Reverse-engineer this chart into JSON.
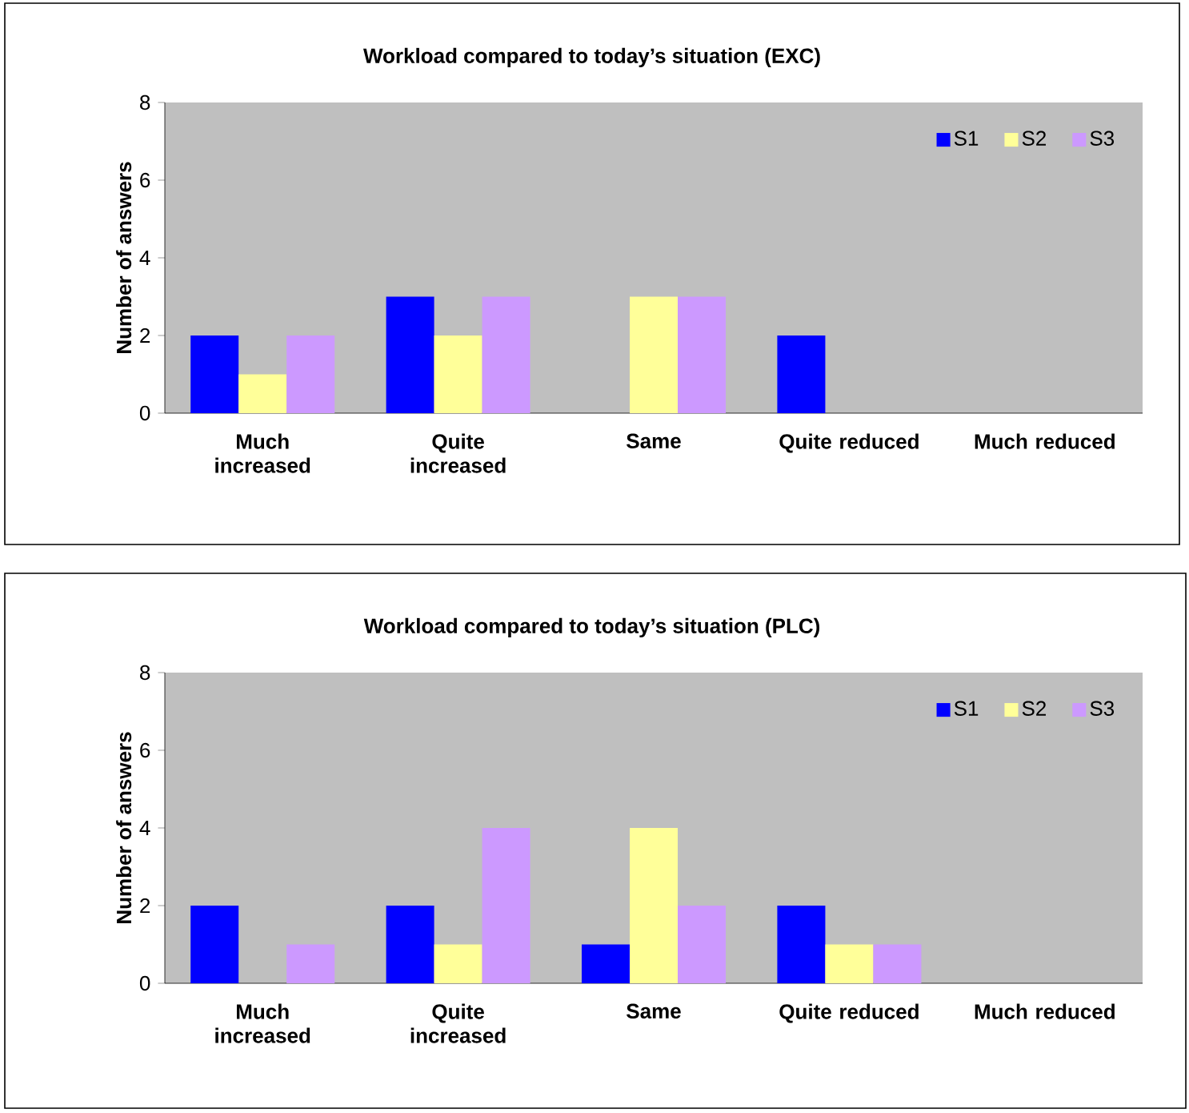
{
  "chart_data": [
    {
      "type": "bar",
      "title": "Workload compared to today’s situation (EXC)",
      "ylabel": "Number of answers",
      "categories": [
        "Much increased",
        "Quite increased",
        "Same",
        "Quite reduced",
        "Much reduced"
      ],
      "ylim": [
        0,
        8
      ],
      "yticks": [
        0,
        2,
        4,
        6,
        8
      ],
      "legend": "top right",
      "series": [
        {
          "name": "S1",
          "color": "#0000ff",
          "values": [
            2,
            3,
            0,
            2,
            0
          ]
        },
        {
          "name": "S2",
          "color": "#ffff99",
          "values": [
            1,
            2,
            3,
            0,
            0
          ]
        },
        {
          "name": "S3",
          "color": "#cc99ff",
          "values": [
            2,
            3,
            3,
            0,
            0
          ]
        }
      ]
    },
    {
      "type": "bar",
      "title": "Workload compared to today’s situation (PLC)",
      "ylabel": "Number of answers",
      "categories": [
        "Much increased",
        "Quite increased",
        "Same",
        "Quite reduced",
        "Much reduced"
      ],
      "ylim": [
        0,
        8
      ],
      "yticks": [
        0,
        2,
        4,
        6,
        8
      ],
      "legend": "top right",
      "series": [
        {
          "name": "S1",
          "color": "#0000ff",
          "values": [
            2,
            2,
            1,
            2,
            0
          ]
        },
        {
          "name": "S2",
          "color": "#ffff99",
          "values": [
            0,
            1,
            4,
            1,
            0
          ]
        },
        {
          "name": "S3",
          "color": "#cc99ff",
          "values": [
            1,
            4,
            2,
            1,
            0
          ]
        }
      ]
    }
  ]
}
